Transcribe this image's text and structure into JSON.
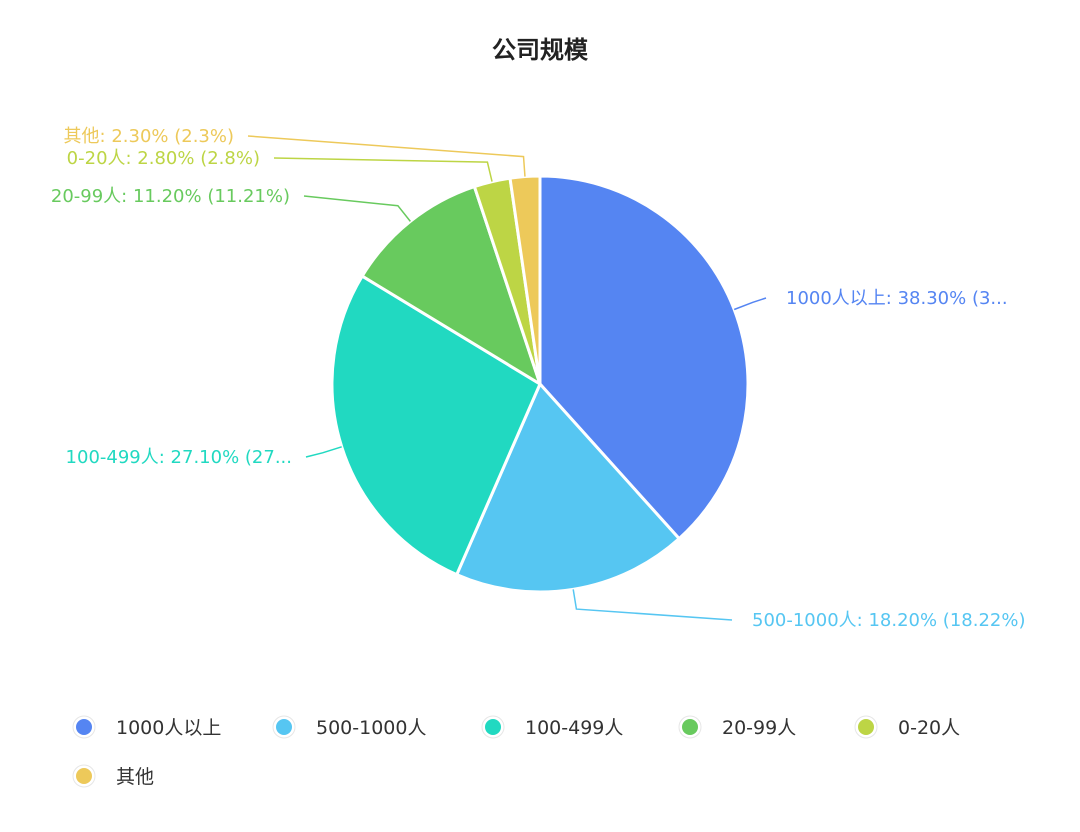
{
  "chart_data": {
    "type": "pie",
    "title": "公司规模",
    "slices": [
      {
        "name": "1000人以上",
        "value": 38.3,
        "label": "1000人以上: 38.30% (3...",
        "color": "#5585F2"
      },
      {
        "name": "500-1000人",
        "value": 18.2,
        "label": "500-1000人: 18.20% (18.22%)",
        "color": "#56C6F2"
      },
      {
        "name": "100-499人",
        "value": 27.1,
        "label": "100-499人: 27.10% (27...",
        "color": "#21D9C1"
      },
      {
        "name": "20-99人",
        "value": 11.2,
        "label": "20-99人: 11.20% (11.21%)",
        "color": "#68CA5E"
      },
      {
        "name": "0-20人",
        "value": 2.8,
        "label": "0-20人: 2.80% (2.8%)",
        "color": "#BDD545"
      },
      {
        "name": "其他",
        "value": 2.3,
        "label": "其他: 2.30% (2.3%)",
        "color": "#EDC95A"
      }
    ],
    "legend": {
      "placement": "bottom-left",
      "items": [
        "1000人以上",
        "500-1000人",
        "100-499人",
        "20-99人",
        "0-20人",
        "其他"
      ]
    }
  }
}
